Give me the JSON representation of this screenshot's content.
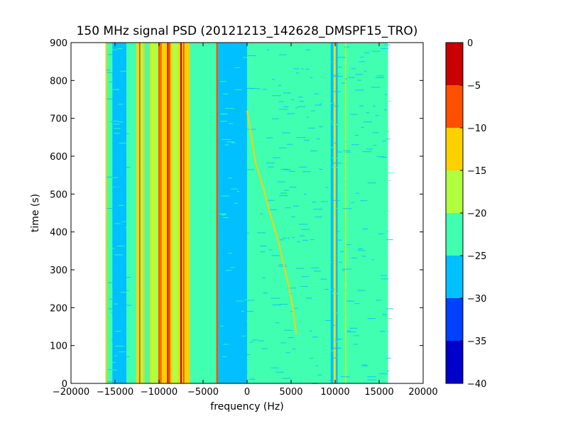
{
  "chart_data": {
    "type": "heatmap",
    "title": "150 MHz signal PSD (20121213_142628_DMSPF15_TRO)",
    "xlabel": "frequency (Hz)",
    "ylabel": "time (s)",
    "xlim": [
      -20000,
      20000
    ],
    "ylim": [
      0,
      900
    ],
    "xticks": [
      -20000,
      -15000,
      -10000,
      -5000,
      0,
      5000,
      10000,
      15000,
      20000
    ],
    "xtick_labels": [
      "−20000",
      "−15000",
      "−10000",
      "−5000",
      "0",
      "5000",
      "10000",
      "15000",
      "20000"
    ],
    "yticks": [
      0,
      100,
      200,
      300,
      400,
      500,
      600,
      700,
      800,
      900
    ],
    "ytick_labels": [
      "0",
      "100",
      "200",
      "300",
      "400",
      "500",
      "600",
      "700",
      "800",
      "900"
    ],
    "data_extent_x": [
      -16000,
      16000
    ],
    "data_extent_y": [
      0,
      900
    ],
    "colorbar": {
      "levels": [
        -40,
        -35,
        -30,
        -25,
        -20,
        -15,
        -10,
        -5,
        0
      ],
      "tick_labels": [
        "−40",
        "−35",
        "−30",
        "−25",
        "−20",
        "−15",
        "−10",
        "−5",
        "0"
      ],
      "colors": [
        "#0000c8",
        "#0040ff",
        "#00c0ff",
        "#40ffb0",
        "#b0ff40",
        "#ffd000",
        "#ff5000",
        "#c80000"
      ]
    },
    "background_level_db": -22,
    "column_bands": [
      {
        "x0": -16000,
        "x1": -15300,
        "level_db": -21
      },
      {
        "x0": -15300,
        "x1": -13700,
        "level_db": -27
      },
      {
        "x0": -13700,
        "x1": -12600,
        "level_db": -22
      },
      {
        "x0": -12600,
        "x1": -11800,
        "level_db": -17
      },
      {
        "x0": -11800,
        "x1": -11000,
        "level_db": -22
      },
      {
        "x0": -11000,
        "x1": -9900,
        "level_db": -18
      },
      {
        "x0": -9900,
        "x1": -8500,
        "level_db": -12
      },
      {
        "x0": -8500,
        "x1": -7800,
        "level_db": -20
      },
      {
        "x0": -7800,
        "x1": -6500,
        "level_db": -11
      },
      {
        "x0": -6500,
        "x1": -5000,
        "level_db": -21
      },
      {
        "x0": -5000,
        "x1": -3500,
        "level_db": -21
      },
      {
        "x0": -3500,
        "x1": -3300,
        "level_db": -10
      },
      {
        "x0": -3300,
        "x1": 0,
        "level_db": -27
      },
      {
        "x0": 0,
        "x1": 9500,
        "level_db": -24
      },
      {
        "x0": 9500,
        "x1": 10300,
        "level_db": -27
      },
      {
        "x0": 10300,
        "x1": 11500,
        "level_db": -21
      },
      {
        "x0": 11500,
        "x1": 13000,
        "level_db": -25
      },
      {
        "x0": 13000,
        "x1": 16000,
        "level_db": -22
      }
    ],
    "narrow_lines": [
      {
        "x": -16000,
        "level_db": -15
      },
      {
        "x": -12500,
        "level_db": -14
      },
      {
        "x": -12200,
        "level_db": -8
      },
      {
        "x": -11700,
        "level_db": -12
      },
      {
        "x": -11000,
        "level_db": -14
      },
      {
        "x": -10000,
        "level_db": -8
      },
      {
        "x": -9800,
        "level_db": -10
      },
      {
        "x": -9000,
        "level_db": -5
      },
      {
        "x": -8800,
        "level_db": -8
      },
      {
        "x": -7500,
        "level_db": -5
      },
      {
        "x": -7200,
        "level_db": -8
      },
      {
        "x": -6900,
        "level_db": -12
      },
      {
        "x": -3400,
        "level_db": -7
      },
      {
        "x": 9900,
        "level_db": -17
      },
      {
        "x": 10000,
        "level_db": -12
      },
      {
        "x": 11200,
        "level_db": -17
      }
    ],
    "doppler_trace": {
      "level_db": -15,
      "points": [
        [
          0,
          720
        ],
        [
          500,
          650
        ],
        [
          1000,
          580
        ],
        [
          1800,
          520
        ],
        [
          2600,
          450
        ],
        [
          3500,
          380
        ],
        [
          4300,
          300
        ],
        [
          4800,
          250
        ],
        [
          5200,
          200
        ],
        [
          5600,
          130
        ]
      ]
    }
  }
}
